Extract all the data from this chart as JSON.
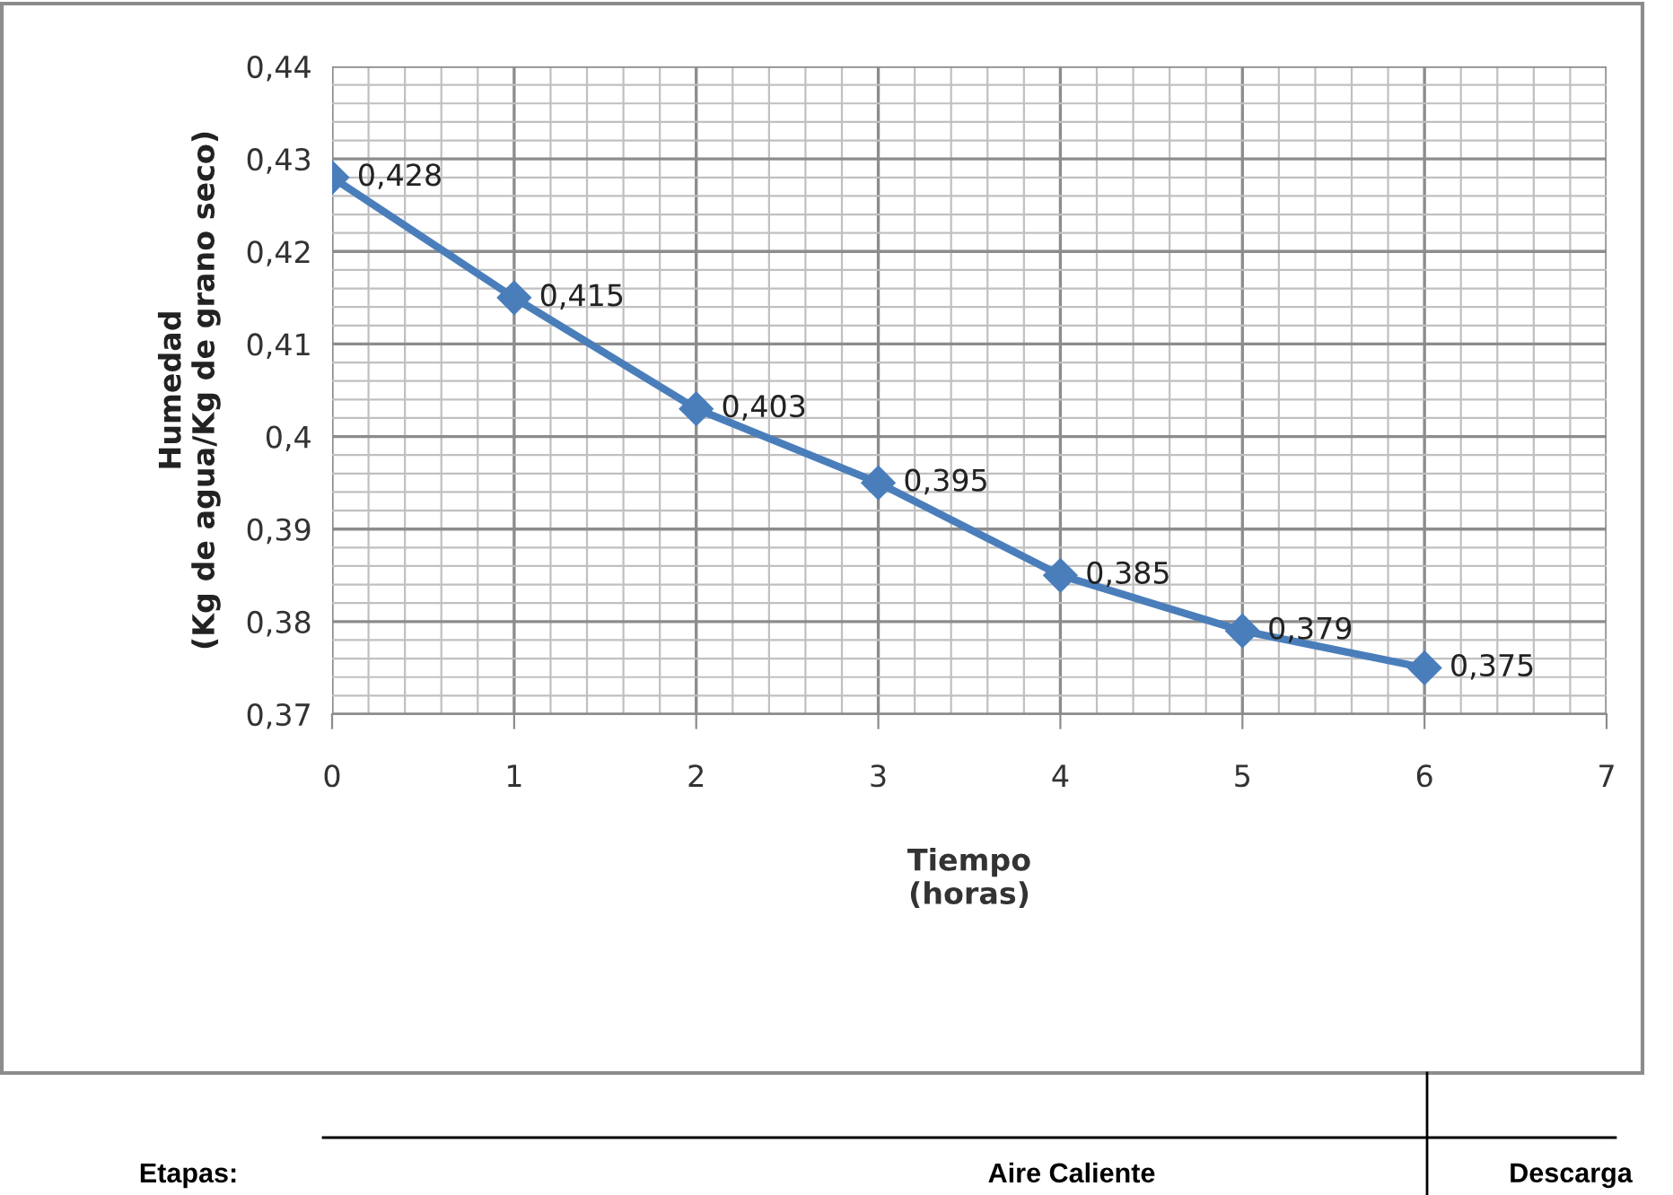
{
  "chart_data": {
    "type": "line",
    "xlabel": "Tiempo\n(horas)",
    "ylabel": "Humedad\n(Kg de agua/Kg de grano seco)",
    "x": [
      0,
      1,
      2,
      3,
      4,
      5,
      6
    ],
    "series": [
      {
        "color": "#4a7ebb",
        "values": [
          0.428,
          0.415,
          0.403,
          0.395,
          0.385,
          0.379,
          0.375
        ],
        "value_labels": [
          "0,428",
          "0,415",
          "0,403",
          "0,395",
          "0,385",
          "0,379",
          "0,375"
        ]
      }
    ],
    "xlim": [
      0,
      7
    ],
    "xticks": [
      0,
      1,
      2,
      3,
      4,
      5,
      6,
      7
    ],
    "ylim": [
      0.37,
      0.44
    ],
    "yticks": [
      {
        "value": 0.37,
        "label": "0,37"
      },
      {
        "value": 0.38,
        "label": "0,38"
      },
      {
        "value": 0.39,
        "label": "0,39"
      },
      {
        "value": 0.4,
        "label": "0,4"
      },
      {
        "value": 0.41,
        "label": "0,41"
      },
      {
        "value": 0.42,
        "label": "0,42"
      },
      {
        "value": 0.43,
        "label": "0,43"
      },
      {
        "value": 0.44,
        "label": "0,44"
      }
    ],
    "grid": true,
    "marker": "diamond",
    "line_style": "solid",
    "legend": false,
    "annotations": [
      "Etapas:",
      "Aire Caliente",
      "Descarga"
    ]
  }
}
